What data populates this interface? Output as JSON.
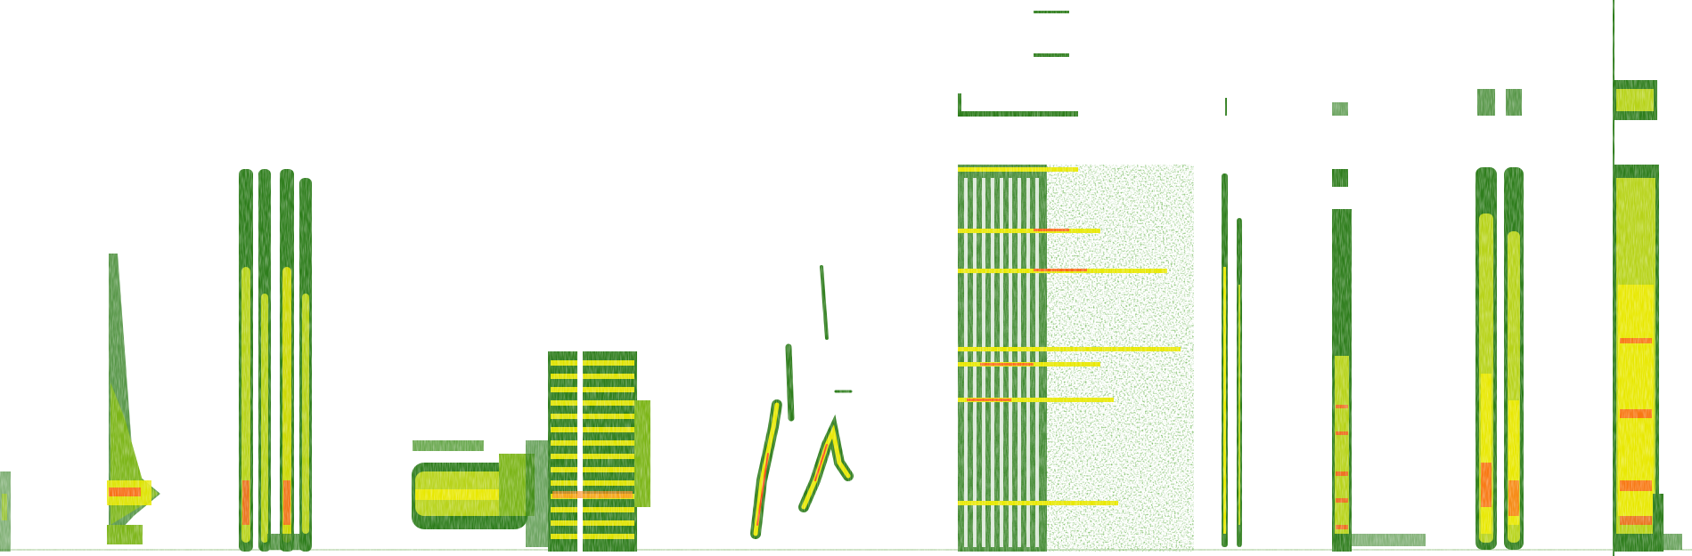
{
  "image": {
    "kind": "spectrogram",
    "colors": {
      "background": "#ffffff",
      "low": "#2e7d1c",
      "mid": "#7cb518",
      "high": "#e8e800",
      "peak": "#ff4a1c"
    }
  }
}
